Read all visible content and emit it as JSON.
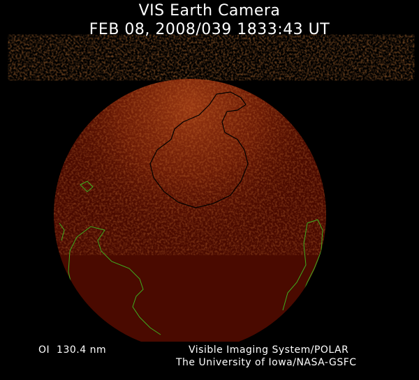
{
  "header": {
    "title": "VIS Earth Camera",
    "timestamp": "FEB 08, 2008/039 1833:43 UT"
  },
  "footer": {
    "filter": "OI  130.4 nm",
    "instrument": "Visible Imaging System/POLAR",
    "institution": "The University of Iowa/NASA-GSFC"
  },
  "colors": {
    "background": "#000000",
    "earth_disk": "#4a0a00",
    "aurora_glow": "#b5451a",
    "coastlines": "#3fae1f",
    "antarctica_outline": "#000000",
    "text": "#ffffff"
  }
}
